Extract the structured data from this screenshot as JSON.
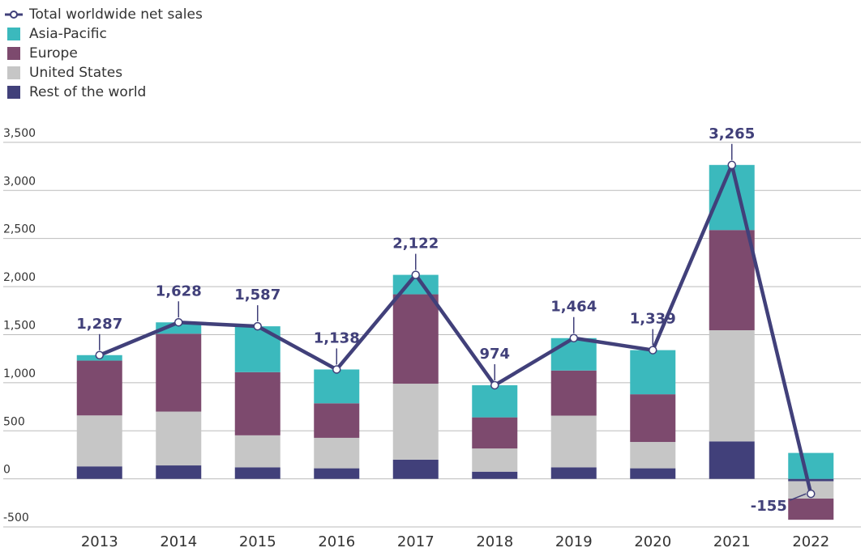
{
  "chart_data": {
    "type": "bar",
    "stacked": true,
    "categories": [
      "2013",
      "2014",
      "2015",
      "2016",
      "2017",
      "2018",
      "2019",
      "2020",
      "2021",
      "2022"
    ],
    "series": [
      {
        "name": "Total worldwide net sales",
        "type": "line",
        "color": "#41407a",
        "values": [
          1287,
          1628,
          1587,
          1138,
          2122,
          974,
          1464,
          1339,
          3265,
          -155
        ],
        "value_labels": [
          "1,287",
          "1,628",
          "1,587",
          "1,138",
          "2,122",
          "974",
          "1,464",
          "1,339",
          "3,265",
          "-155"
        ]
      },
      {
        "name": "Asia-Pacific",
        "color": "#3bb9bd",
        "values": [
          57,
          118,
          477,
          352,
          202,
          334,
          337,
          459,
          677,
          270
        ]
      },
      {
        "name": "Europe",
        "color": "#7d4a6e",
        "values": [
          570,
          810,
          657,
          359,
          930,
          324,
          469,
          496,
          1042,
          -220
        ]
      },
      {
        "name": "United States",
        "color": "#c6c6c6",
        "values": [
          530,
          560,
          333,
          317,
          790,
          241,
          538,
          274,
          1156,
          -180
        ]
      },
      {
        "name": "Rest of the world",
        "color": "#41407a",
        "values": [
          130,
          140,
          120,
          110,
          200,
          75,
          120,
          110,
          390,
          -25
        ]
      }
    ],
    "ylim": [
      -550,
      3600
    ],
    "yticks": [
      {
        "value": 3500,
        "label": "3,500"
      },
      {
        "value": 3000,
        "label": "3,000"
      },
      {
        "value": 2500,
        "label": "2,500"
      },
      {
        "value": 2000,
        "label": "2,000"
      },
      {
        "value": 1500,
        "label": "1,500"
      },
      {
        "value": 1000,
        "label": "1,000"
      },
      500,
      0,
      -500
    ],
    "grid": true,
    "legend": "top-left"
  }
}
